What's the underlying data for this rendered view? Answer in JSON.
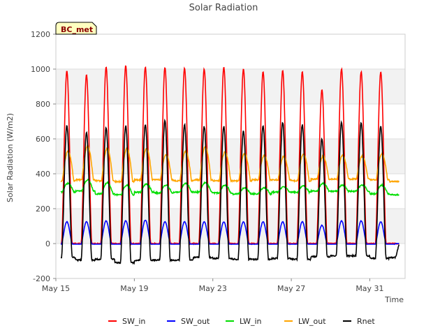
{
  "chart_data": {
    "type": "line",
    "title": "Solar Radiation",
    "xlabel": "Time",
    "ylabel": "Solar Radiation (W/m2)",
    "badge": "BC_met",
    "xlim": [
      15,
      32.8
    ],
    "ylim": [
      -200,
      1200
    ],
    "x_ticks": [
      {
        "value": 15,
        "label": "May 15"
      },
      {
        "value": 19,
        "label": "May 19"
      },
      {
        "value": 23,
        "label": "May 23"
      },
      {
        "value": 27,
        "label": "May 27"
      },
      {
        "value": 31,
        "label": "May 31"
      }
    ],
    "y_ticks": [
      -200,
      0,
      200,
      400,
      600,
      800,
      1000,
      1200
    ],
    "days": [
      15,
      16,
      17,
      18,
      19,
      20,
      21,
      22,
      23,
      24,
      25,
      26,
      27,
      28,
      29,
      30,
      31,
      32
    ],
    "series": [
      {
        "name": "SW_in",
        "color": "#ff0000",
        "kind": "sw_in",
        "daily_peak": [
          990,
          965,
          1010,
          1020,
          1010,
          1010,
          1005,
          1000,
          1010,
          1000,
          985,
          990,
          985,
          880,
          1000,
          985,
          985,
          0
        ]
      },
      {
        "name": "SW_out",
        "color": "#0000ff",
        "kind": "sw_out",
        "daily_peak": [
          125,
          125,
          130,
          130,
          135,
          125,
          125,
          125,
          125,
          125,
          125,
          125,
          125,
          105,
          130,
          130,
          125,
          0
        ]
      },
      {
        "name": "LW_in",
        "color": "#00dd00",
        "kind": "lw",
        "daily_base": [
          295,
          300,
          285,
          280,
          295,
          290,
          295,
          295,
          290,
          285,
          285,
          295,
          295,
          300,
          300,
          300,
          285,
          280
        ],
        "daily_peak": [
          345,
          365,
          350,
          335,
          340,
          335,
          345,
          350,
          335,
          320,
          320,
          325,
          330,
          345,
          335,
          335,
          335,
          0
        ]
      },
      {
        "name": "LW_out",
        "color": "#ffa500",
        "kind": "lw",
        "daily_base": [
          360,
          365,
          360,
          355,
          365,
          365,
          360,
          365,
          360,
          360,
          365,
          365,
          360,
          370,
          370,
          370,
          365,
          355
        ],
        "daily_peak": [
          530,
          560,
          545,
          545,
          545,
          510,
          530,
          555,
          525,
          515,
          505,
          500,
          515,
          500,
          505,
          500,
          515,
          0
        ]
      },
      {
        "name": "Rnet",
        "color": "#000000",
        "kind": "rnet",
        "daily_base": [
          -80,
          -95,
          -90,
          -110,
          -95,
          -95,
          -95,
          -80,
          -85,
          -90,
          -90,
          -85,
          -90,
          -75,
          -70,
          -70,
          -85,
          -80
        ],
        "daily_peak": [
          675,
          635,
          665,
          675,
          680,
          705,
          680,
          670,
          670,
          645,
          675,
          695,
          680,
          600,
          695,
          695,
          675,
          0
        ]
      }
    ],
    "legend_position": "bottom",
    "grid": true
  }
}
